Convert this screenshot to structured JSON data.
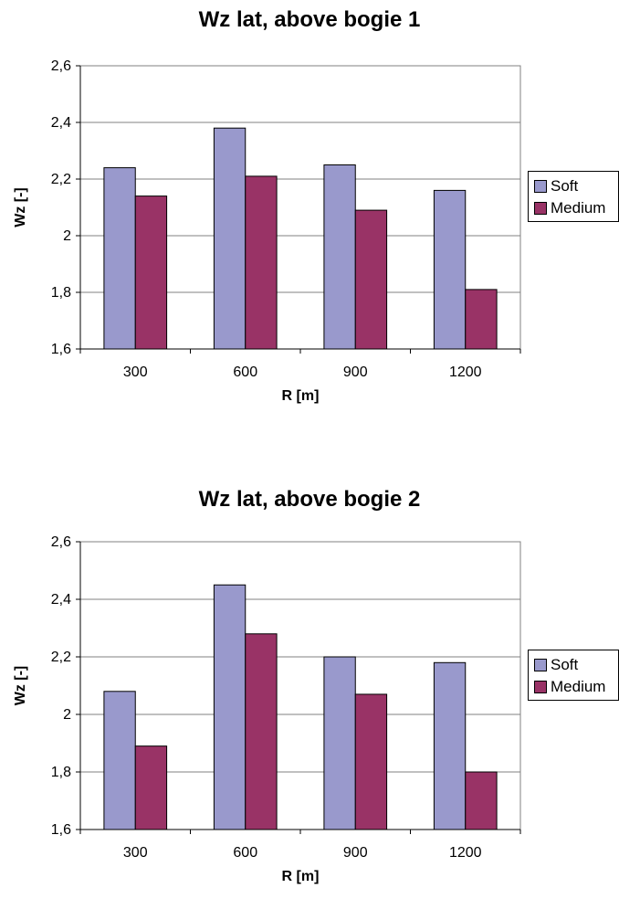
{
  "colors": {
    "soft": "#9999cc",
    "medium": "#993366",
    "grid": "#808080",
    "plot_bg": "#ffffff"
  },
  "chart_data": [
    {
      "type": "bar",
      "title": "Wz lat, above bogie 1",
      "xlabel": "R [m]",
      "ylabel": "Wz [-]",
      "categories": [
        "300",
        "600",
        "900",
        "1200"
      ],
      "series": [
        {
          "name": "Soft",
          "values": [
            2.24,
            2.38,
            2.25,
            2.16
          ]
        },
        {
          "name": "Medium",
          "values": [
            2.14,
            2.21,
            2.09,
            1.81
          ]
        }
      ],
      "ylim": [
        1.6,
        2.6
      ],
      "yticks": [
        "1,6",
        "1,8",
        "2",
        "2,2",
        "2,4",
        "2,6"
      ],
      "grid": true,
      "legend_position": "right"
    },
    {
      "type": "bar",
      "title": "Wz lat, above bogie 2",
      "xlabel": "R [m]",
      "ylabel": "Wz [-]",
      "categories": [
        "300",
        "600",
        "900",
        "1200"
      ],
      "series": [
        {
          "name": "Soft",
          "values": [
            2.08,
            2.45,
            2.2,
            2.18
          ]
        },
        {
          "name": "Medium",
          "values": [
            1.89,
            2.28,
            2.07,
            1.8
          ]
        }
      ],
      "ylim": [
        1.6,
        2.6
      ],
      "yticks": [
        "1,6",
        "1,8",
        "2",
        "2,2",
        "2,4",
        "2,6"
      ],
      "grid": true,
      "legend_position": "right"
    }
  ]
}
